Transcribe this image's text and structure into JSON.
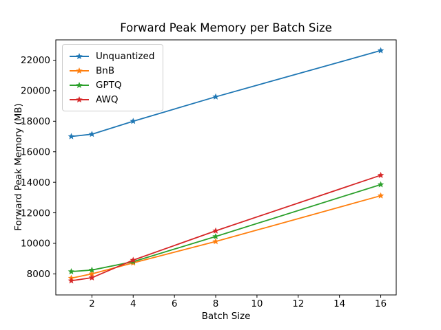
{
  "figure": {
    "background": "#ffffff",
    "spine_color": "#000000",
    "text_color": "#000000"
  },
  "chart_data": {
    "type": "line",
    "title": "Forward Peak Memory per Batch Size",
    "xlabel": "Batch Size",
    "ylabel": "Forward Peak Memory (MB)",
    "x": [
      1,
      2,
      4,
      8,
      16
    ],
    "series": [
      {
        "name": "Unquantized",
        "color": "#1f77b4",
        "marker": "star",
        "values": [
          17000,
          17150,
          18000,
          19600,
          22630
        ]
      },
      {
        "name": "BnB",
        "color": "#ff7f0e",
        "marker": "star",
        "values": [
          7720,
          8000,
          8720,
          10120,
          13120
        ]
      },
      {
        "name": "GPTQ",
        "color": "#2ca02c",
        "marker": "star",
        "values": [
          8150,
          8250,
          8800,
          10450,
          13850
        ]
      },
      {
        "name": "AWQ",
        "color": "#d62728",
        "marker": "star",
        "values": [
          7550,
          7750,
          8900,
          10820,
          14460
        ]
      }
    ],
    "xticks": [
      2,
      4,
      6,
      8,
      10,
      12,
      14,
      16
    ],
    "yticks": [
      8000,
      10000,
      12000,
      14000,
      16000,
      18000,
      20000,
      22000
    ],
    "xlim": [
      0.25,
      16.75
    ],
    "ylim": [
      6620,
      23330
    ],
    "grid": false,
    "legend_position": "upper left"
  }
}
